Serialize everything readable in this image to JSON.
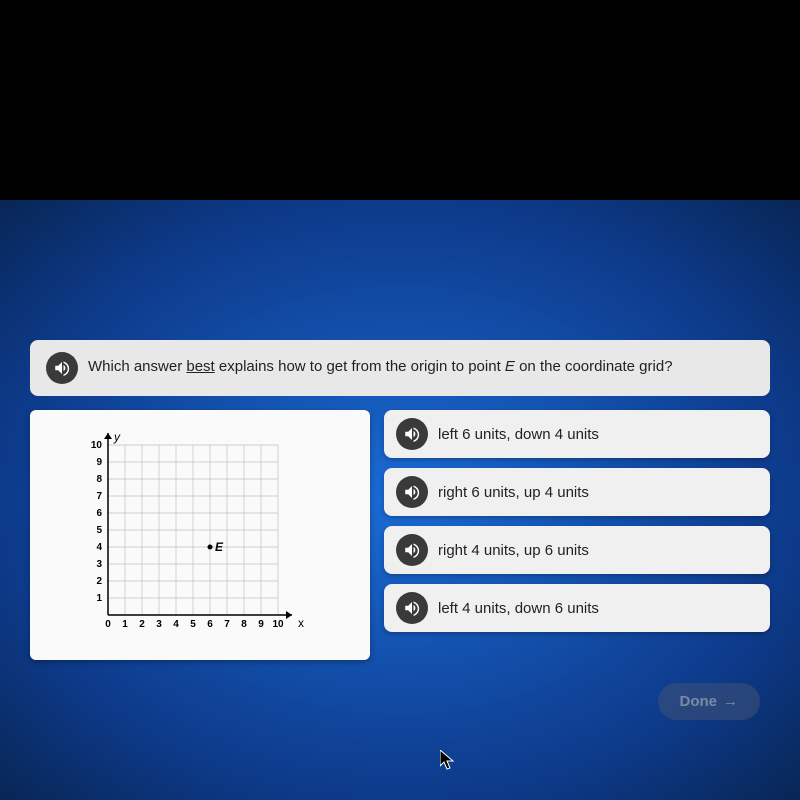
{
  "question": {
    "pre": "Which answer ",
    "best": "best",
    "mid": " explains how to get from the origin to point ",
    "point": "E",
    "post": " on the coordinate grid?"
  },
  "grid": {
    "x_label": "x",
    "y_label": "y",
    "x_ticks": [
      "0",
      "1",
      "2",
      "3",
      "4",
      "5",
      "6",
      "7",
      "8",
      "9",
      "10"
    ],
    "y_ticks": [
      "1",
      "2",
      "3",
      "4",
      "5",
      "6",
      "7",
      "8",
      "9",
      "10"
    ],
    "point_label": "E",
    "point_x": 6,
    "point_y": 4,
    "grid_color": "#bfbfbf",
    "axis_color": "#000000",
    "background": "#fafafa",
    "tick_font_size": 10
  },
  "answers": [
    {
      "text": "left 6 units, down 4 units"
    },
    {
      "text": "right 6 units, up 4 units"
    },
    {
      "text": "right 4 units, up 6 units"
    },
    {
      "text": "left 4 units, down 6 units"
    }
  ],
  "done": {
    "label": "Done"
  },
  "colors": {
    "panel_bg": "#f0f0f0",
    "blue_center": "#1a6bd6",
    "blue_edge": "#082655",
    "audio_bg": "#3a3a3a"
  }
}
